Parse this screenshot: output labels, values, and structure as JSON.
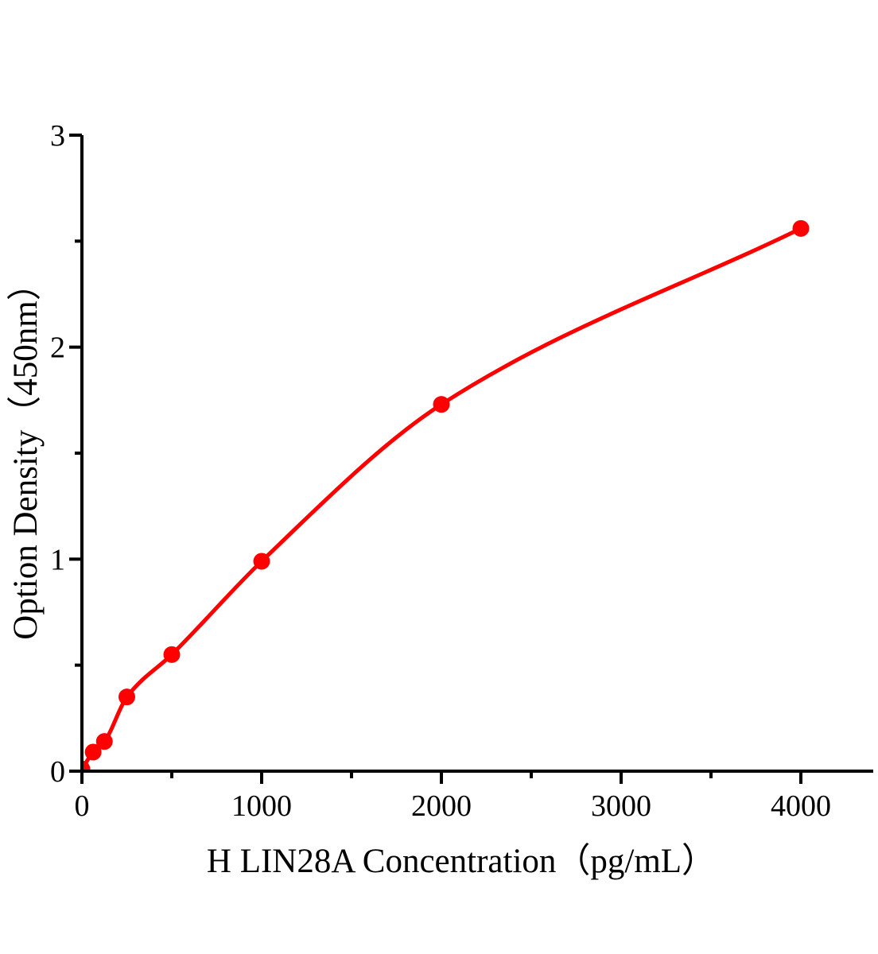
{
  "chart_data": {
    "type": "scatter",
    "title": "",
    "xlabel": "H LIN28A Concentration（pg/mL）",
    "ylabel": "Option Density（450nm）",
    "x": [
      0,
      62.5,
      125,
      250,
      500,
      1000,
      2000,
      4000
    ],
    "y": [
      0.01,
      0.09,
      0.14,
      0.35,
      0.55,
      0.99,
      1.73,
      2.56
    ],
    "fit_line": true,
    "fit_line_style": "smooth monotone curve through points",
    "xlim": [
      0,
      4400
    ],
    "ylim": [
      0,
      3
    ],
    "x_major_ticks": [
      0,
      1000,
      2000,
      3000,
      4000
    ],
    "x_tick_labels": [
      "0",
      "1000",
      "2000",
      "3000",
      "4000"
    ],
    "x_minor_ticks": [
      500,
      1500,
      2500,
      3500
    ],
    "y_major_ticks": [
      0,
      1,
      2,
      3
    ],
    "y_tick_labels": [
      "0",
      "1",
      "2",
      "3"
    ],
    "y_minor_ticks": [
      0.5,
      1.5,
      2.5
    ],
    "grid": false,
    "legend": false,
    "colors": {
      "curve": "#ff0000",
      "marker": "#ff0000",
      "axis": "#000000",
      "background": "#ffffff"
    }
  }
}
